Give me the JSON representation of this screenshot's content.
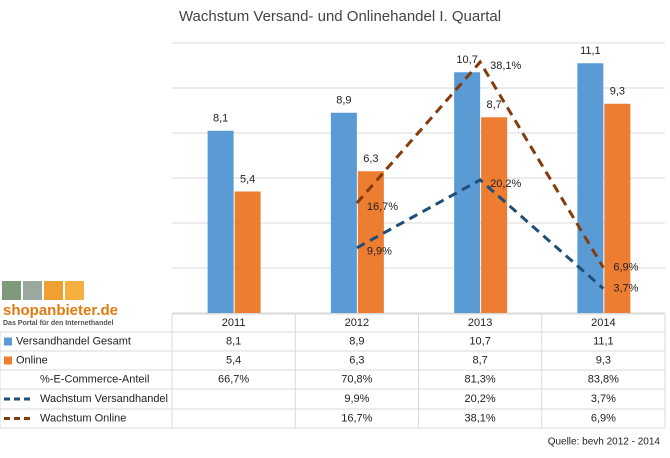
{
  "chart_data": {
    "type": "bar",
    "title": "Wachstum Versand- und Onlinehandel I. Quartal",
    "categories": [
      "2011",
      "2012",
      "2013",
      "2014"
    ],
    "series": [
      {
        "name": "Versandhandel Gesamt",
        "color": "#5b9bd5",
        "type": "bar",
        "values": [
          8.1,
          8.9,
          10.7,
          11.1
        ],
        "value_labels": [
          "8,1",
          "8,9",
          "10,7",
          "11,1"
        ]
      },
      {
        "name": "Online",
        "color": "#ed7d31",
        "type": "bar",
        "values": [
          5.4,
          6.3,
          8.7,
          9.3
        ],
        "value_labels": [
          "5,4",
          "6,3",
          "8,7",
          "9,3"
        ]
      },
      {
        "name": "Wachstum Versandhandel",
        "color": "#1f4e79",
        "type": "line",
        "axis": "y2",
        "values": [
          null,
          9.9,
          20.2,
          3.7
        ],
        "value_labels": [
          null,
          "9,9%",
          "20,2%",
          "3,7%"
        ]
      },
      {
        "name": "Wachstum Online",
        "color": "#843c0c",
        "type": "line",
        "axis": "y2",
        "values": [
          null,
          16.7,
          38.1,
          6.9
        ],
        "value_labels": [
          null,
          "16,7%",
          "38,1%",
          "6,9%"
        ]
      }
    ],
    "share_row": {
      "name": "%-E-Commerce-Anteil",
      "labels": [
        "66,7%",
        "70,8%",
        "81,3%",
        "83,8%"
      ]
    },
    "ylim": [
      0,
      12
    ],
    "yticks": [
      0,
      2,
      4,
      6,
      8,
      10,
      12
    ],
    "y2lim": [
      0,
      41
    ],
    "grid": true,
    "source": "Quelle: bevh 2012 - 2014"
  },
  "logo": {
    "name": "shopanbieter.de",
    "tagline": "Das Portal für den Internethandel"
  }
}
